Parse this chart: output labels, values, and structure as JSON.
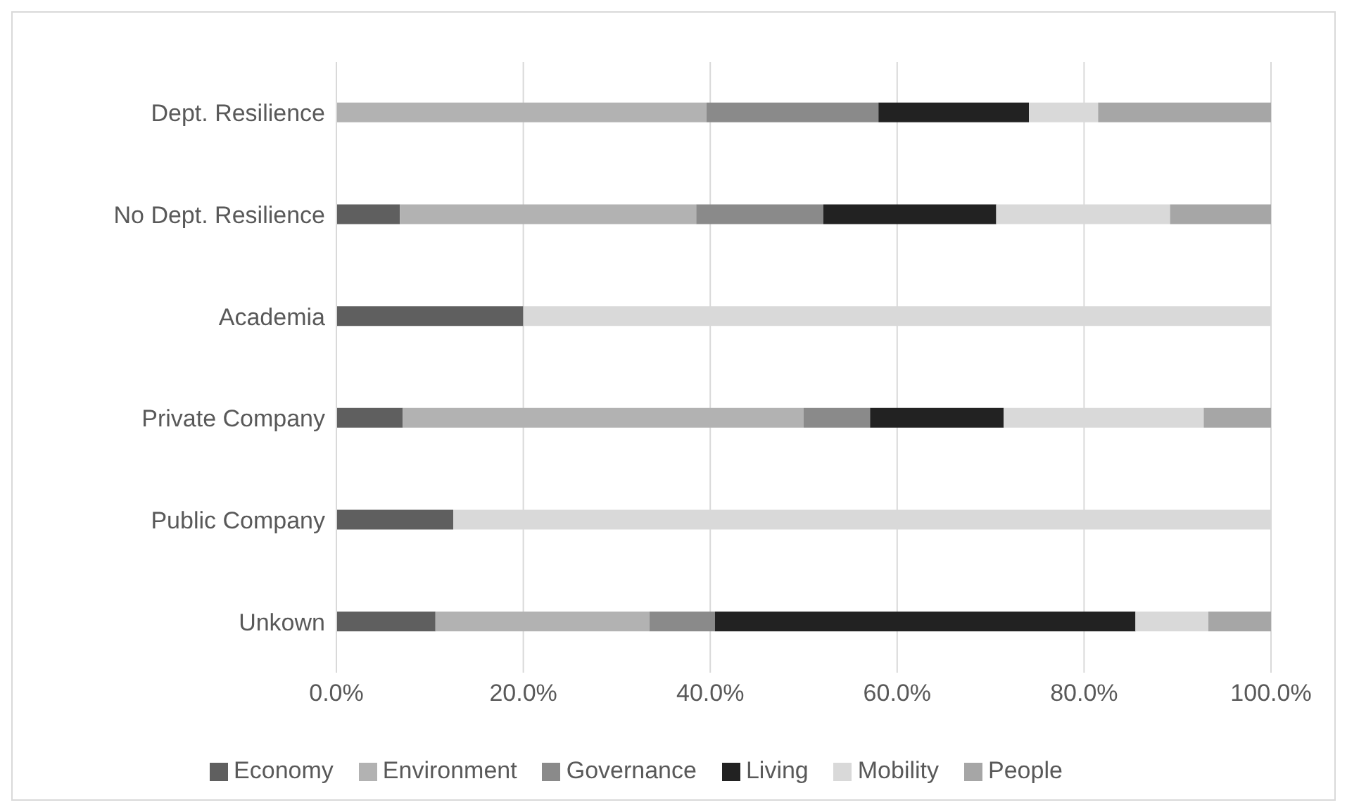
{
  "chart_data": {
    "type": "bar",
    "orientation": "horizontal",
    "stacked": true,
    "categories": [
      "Dept. Resilience",
      "No Dept. Resilience",
      "Academia",
      "Private Company",
      "Public Company",
      "Unkown"
    ],
    "series": [
      {
        "name": "Economy",
        "color": "#5f5f5f",
        "values": [
          0,
          6.8,
          20,
          7.1,
          12.5,
          10.6
        ]
      },
      {
        "name": "Environment",
        "color": "#b2b2b2",
        "values": [
          39.6,
          31.7,
          0,
          42.9,
          0,
          22.9
        ]
      },
      {
        "name": "Governance",
        "color": "#8a8a8a",
        "values": [
          18.4,
          13.6,
          0,
          7.1,
          0,
          7.0
        ]
      },
      {
        "name": "Living",
        "color": "#222222",
        "values": [
          16.1,
          18.5,
          0,
          14.3,
          0,
          45.0
        ]
      },
      {
        "name": "Mobility",
        "color": "#d9d9d9",
        "values": [
          7.4,
          18.6,
          80,
          21.4,
          87.5,
          7.8
        ]
      },
      {
        "name": "People",
        "color": "#a6a6a6",
        "values": [
          18.5,
          10.8,
          0,
          7.2,
          0,
          6.7
        ]
      }
    ],
    "xlim": [
      0,
      100
    ],
    "xticks": [
      {
        "value": 0,
        "label": "0.0%"
      },
      {
        "value": 20,
        "label": "20.0%"
      },
      {
        "value": 40,
        "label": "40.0%"
      },
      {
        "value": 60,
        "label": "60.0%"
      },
      {
        "value": 80,
        "label": "80.0%"
      },
      {
        "value": 100,
        "label": "100.0%"
      }
    ],
    "grid": "x",
    "legend": "bottom"
  }
}
